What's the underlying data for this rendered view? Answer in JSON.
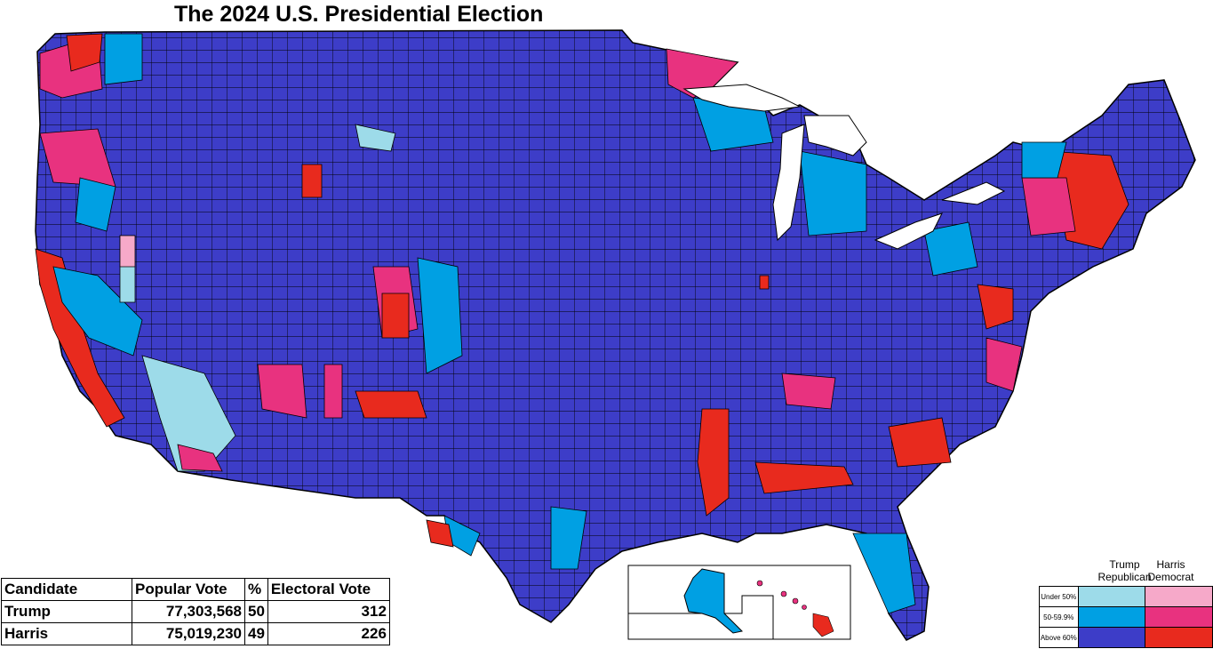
{
  "title": "The 2024 U.S. Presidential Election",
  "colors": {
    "rep_under50": "#9ddbe9",
    "rep_50_59": "#00a0e3",
    "rep_above60": "#3d3dc8",
    "dem_under50": "#f6a9c9",
    "dem_50_59": "#e8327f",
    "dem_above60": "#e82a1e"
  },
  "results_table": {
    "headers": [
      "Candidate",
      "Popular Vote",
      "%",
      "Electoral Vote"
    ],
    "rows": [
      {
        "candidate": "Trump",
        "popular_vote": "77,303,568",
        "pct": "50",
        "electoral_vote": "312"
      },
      {
        "candidate": "Harris",
        "popular_vote": "75,019,230",
        "pct": "49",
        "electoral_vote": "226"
      }
    ]
  },
  "legend": {
    "rep_header_line1": "Trump",
    "rep_header_line2": "Republican",
    "dem_header_line1": "Harris",
    "dem_header_line2": "Democrat",
    "rows": [
      "Under 50%",
      "50-59.9%",
      "Above 60%"
    ]
  }
}
